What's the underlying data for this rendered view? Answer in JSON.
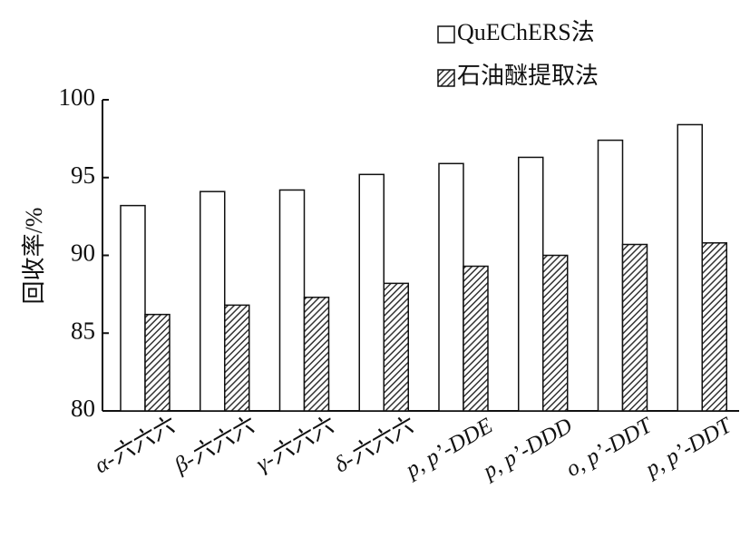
{
  "chart_data": {
    "type": "bar",
    "y_label": "回收率/%",
    "categories": [
      "α-六六六",
      "β-六六六",
      "γ-六六六",
      "δ-六六六",
      "p, p’-DDE",
      "p, p’-DDD",
      "o, p’-DDT",
      "p, p’-DDT"
    ],
    "series": [
      {
        "name": "QuEChERS法",
        "color": "#ffffff",
        "values": [
          93.2,
          94.1,
          94.2,
          95.2,
          95.9,
          96.3,
          97.4,
          98.4
        ]
      },
      {
        "name": "石油醚提取法",
        "color": "#333333",
        "hatch": true,
        "values": [
          86.2,
          86.8,
          87.3,
          88.2,
          89.3,
          90.0,
          90.7,
          90.8
        ]
      }
    ],
    "ylim": [
      80,
      100
    ],
    "yticks": [
      80,
      85,
      90,
      95,
      100
    ]
  }
}
